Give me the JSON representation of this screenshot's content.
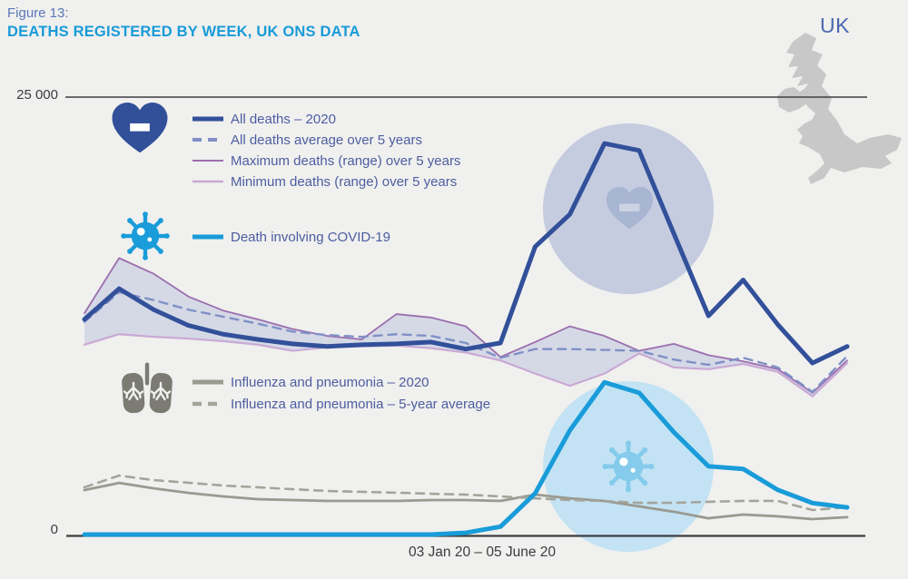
{
  "header": {
    "figure_label": "Figure 13:",
    "figure_label_color": "#5a78b8",
    "title": "DEATHS REGISTERED BY WEEK, UK ONS DATA",
    "title_color": "#199bd8"
  },
  "legend": {
    "text_color": "#4d5da1"
  },
  "decorations": {
    "map": {
      "label": "UK",
      "label_color": "#4b67af",
      "color": "#c8c8c8"
    },
    "icons": {
      "heart": "#32509a",
      "virus": "#199cd9",
      "lungs": "#7b7b74"
    },
    "heart_circle": {
      "fill": "#c5cce0",
      "heart_fill": "#a8b5d3",
      "minus_fill": "#ccd3e3"
    },
    "covid_circle": {
      "fill": "#c3e3f4",
      "virus_fill": "#84cbec"
    }
  },
  "chart_data": {
    "type": "line",
    "title": "DEATHS REGISTERED BY WEEK, UK ONS DATA",
    "x_axis": {
      "label": "03 Jan 20 – 05 June 20",
      "start": "03 Jan 20",
      "end": "05 June 20",
      "weeks": 23
    },
    "y_axis": {
      "min": 0,
      "max": 25000,
      "tick_labels": [
        "0",
        "25 000"
      ]
    },
    "axis_line_color": "#3d3d40",
    "label_color": "#3c3c40",
    "grid": false,
    "band": {
      "name": "Min–max deaths range over 5 years",
      "fill": "#ced3e3",
      "opacity": 0.8,
      "upper": "max5",
      "lower": "min5"
    },
    "series": [
      {
        "id": "max5",
        "name": "Maximum deaths (range) over 5 years",
        "color": "#9b6fae",
        "width": 1.8,
        "dash": null,
        "values": [
          12650,
          15800,
          14900,
          13600,
          12800,
          12300,
          11750,
          11350,
          11150,
          12600,
          12400,
          11900,
          10150,
          11000,
          11900,
          11350,
          10500,
          10900,
          10250,
          9900,
          9450,
          8100,
          9950
        ]
      },
      {
        "id": "min5",
        "name": "Minimum deaths (range) over 5 years",
        "color": "#c9a9d5",
        "width": 2.2,
        "dash": null,
        "values": [
          10850,
          11450,
          11300,
          11200,
          11050,
          10850,
          10500,
          10700,
          10750,
          10800,
          10650,
          10400,
          9950,
          9200,
          8500,
          9200,
          10350,
          9550,
          9450,
          9750,
          9300,
          7900,
          9800
        ]
      },
      {
        "id": "avg5",
        "name": "All deaths average over 5 years",
        "color": "#8090c6",
        "width": 2.4,
        "dash": "9 7",
        "values": [
          12150,
          13850,
          13400,
          12850,
          12450,
          12050,
          11600,
          11400,
          11300,
          11450,
          11350,
          10950,
          10100,
          10600,
          10600,
          10550,
          10500,
          10000,
          9700,
          10100,
          9550,
          8150,
          10200
        ]
      },
      {
        "id": "flu2020",
        "name": "Influenza and pneumonia – 2020",
        "color": "#9a9a92",
        "width": 2.8,
        "dash": null,
        "values": [
          2540,
          2950,
          2640,
          2380,
          2180,
          2020,
          1970,
          1920,
          1920,
          1920,
          1970,
          1970,
          1920,
          2280,
          2070,
          1920,
          1610,
          1300,
          930,
          1140,
          1040,
          880,
          990
        ]
      },
      {
        "id": "flu5yr",
        "name": "Influenza and pneumonia – 5-year average",
        "color": "#a4a49c",
        "width": 2.6,
        "dash": "9 7",
        "values": [
          2700,
          3370,
          3110,
          2960,
          2800,
          2700,
          2590,
          2490,
          2440,
          2390,
          2330,
          2280,
          2180,
          2070,
          1970,
          1920,
          1810,
          1810,
          1870,
          1920,
          1920,
          1400,
          1560
        ]
      },
      {
        "id": "covid",
        "name": "Death involving COVID-19",
        "color": "#199cd9",
        "width": 5,
        "dash": null,
        "values": [
          0,
          0,
          0,
          0,
          0,
          0,
          0,
          0,
          0,
          0,
          0,
          100,
          450,
          2350,
          5950,
          8700,
          8100,
          5850,
          3900,
          3750,
          2550,
          1800,
          1550
        ]
      },
      {
        "id": "all2020",
        "name": "All deaths – 2020",
        "color": "#32509a",
        "width": 5,
        "dash": null,
        "values": [
          12300,
          14050,
          12850,
          11950,
          11450,
          11150,
          10900,
          10750,
          10850,
          10900,
          11000,
          10600,
          10950,
          16450,
          18300,
          22350,
          21950,
          17200,
          12500,
          14550,
          12000,
          9800,
          10750
        ]
      }
    ]
  }
}
